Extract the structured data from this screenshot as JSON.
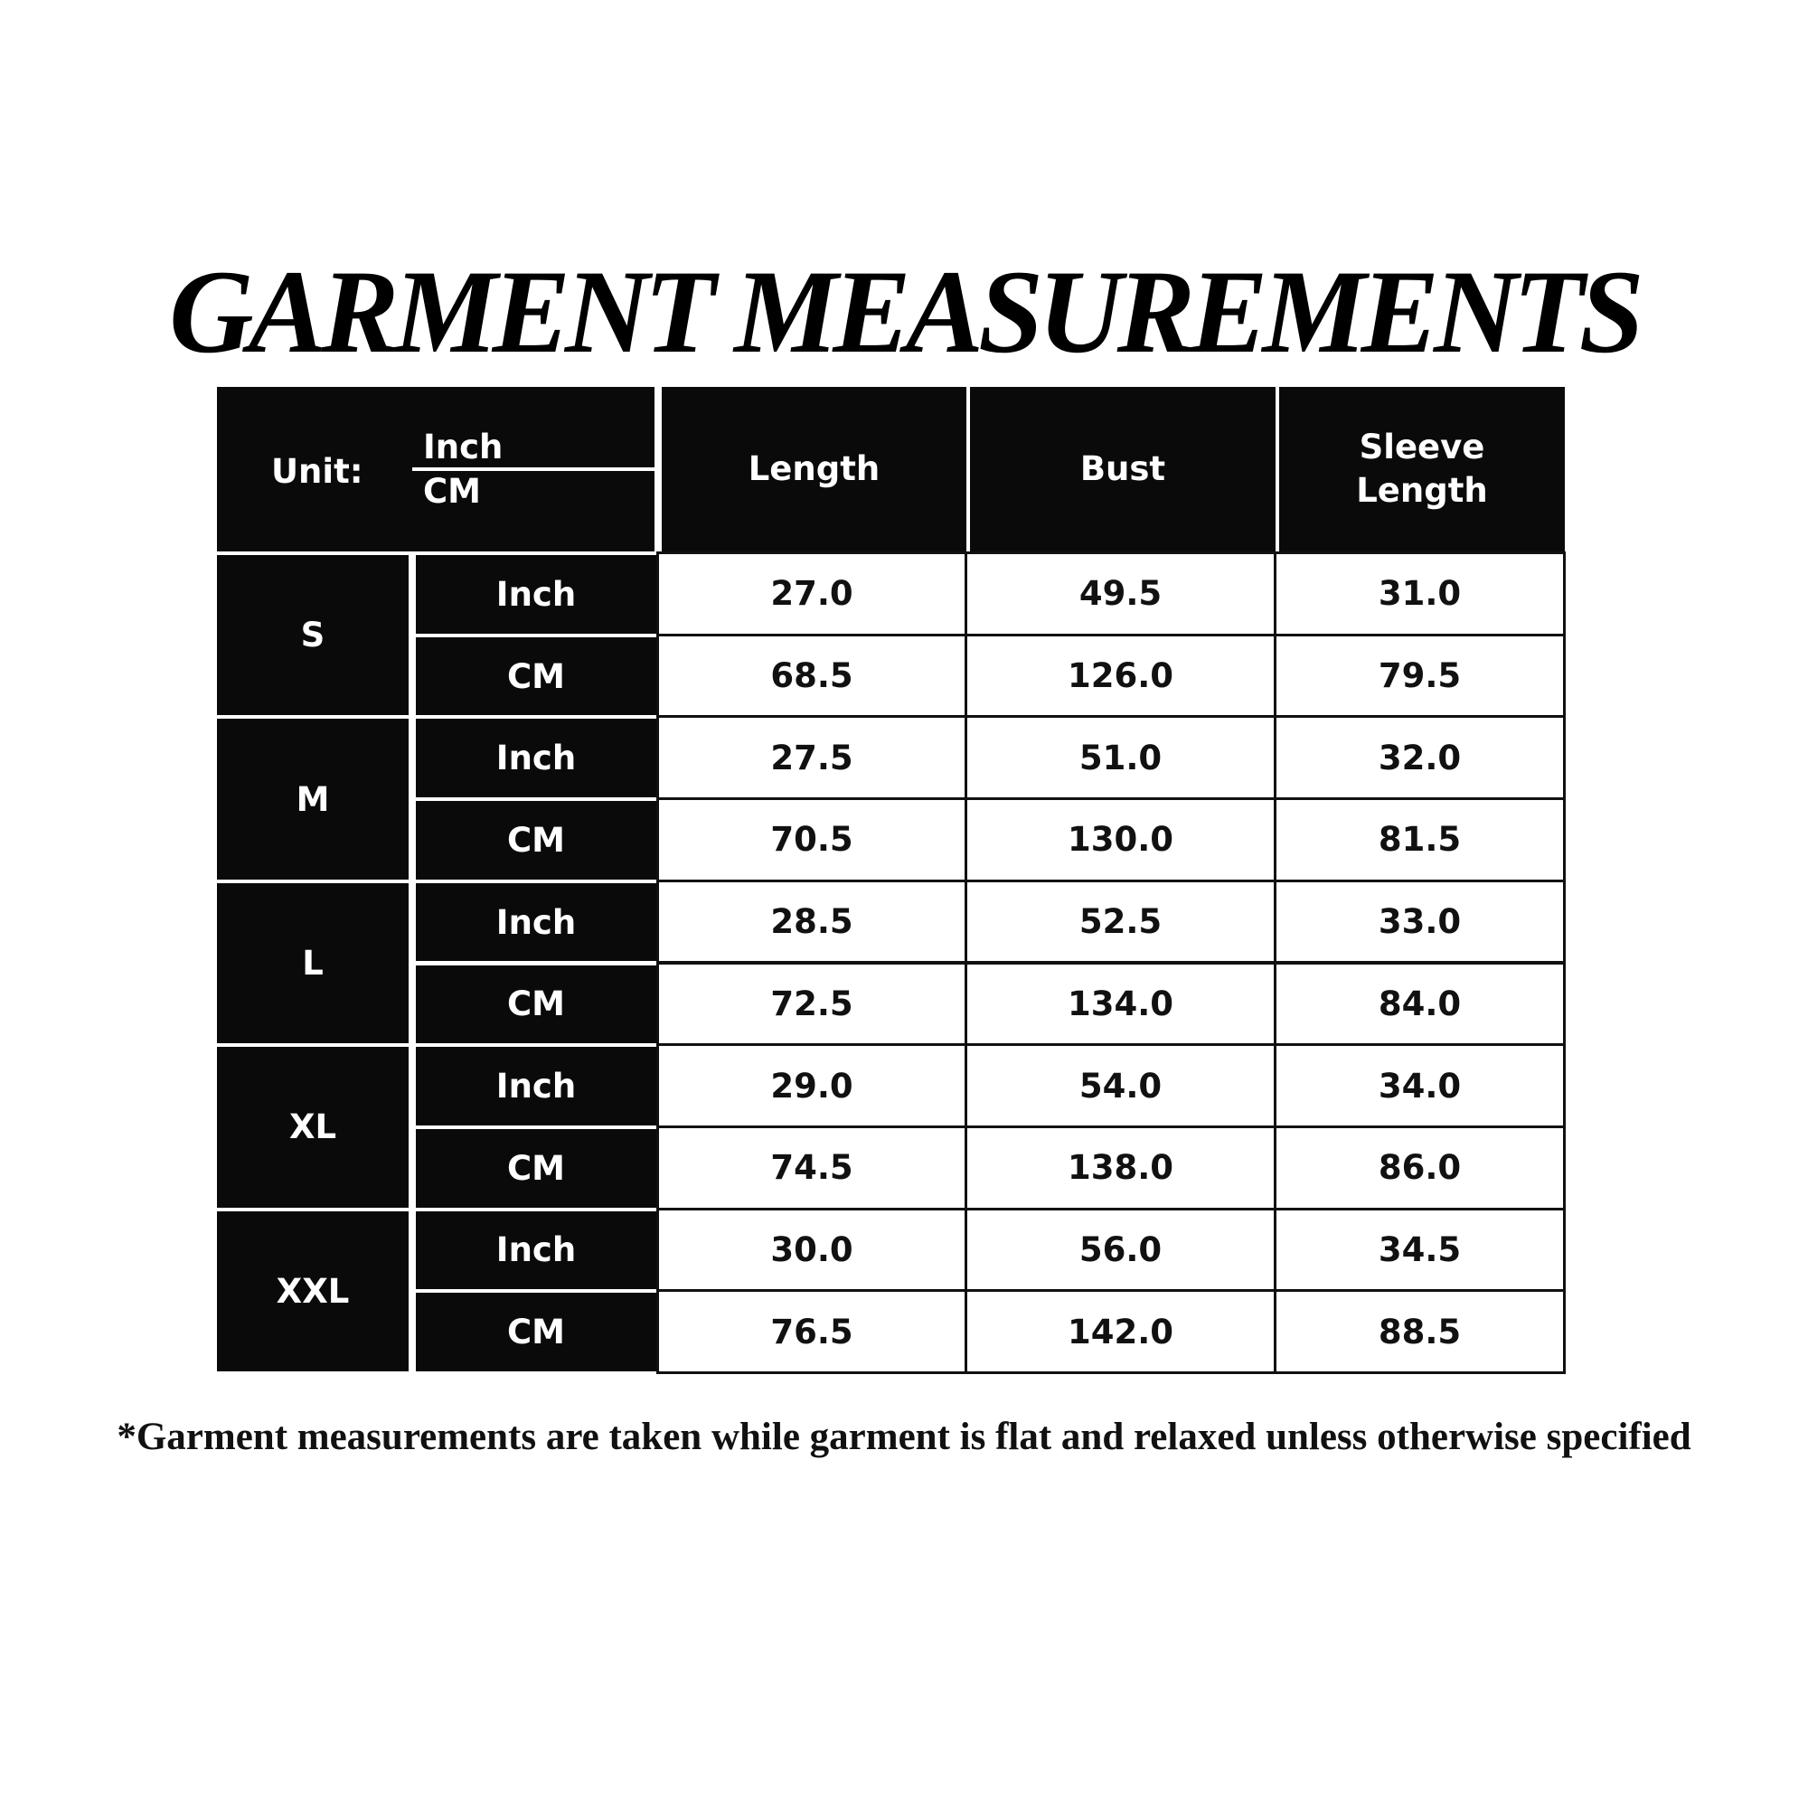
{
  "title": "GARMENT MEASUREMENTS",
  "table": {
    "unit_label": "Unit:",
    "unit_top": "Inch",
    "unit_bottom": "CM",
    "columns": [
      "Length",
      "Bust",
      "Sleeve Length"
    ],
    "sizes": [
      {
        "size": "S",
        "rows": [
          {
            "unit": "Inch",
            "values": [
              "27.0",
              "49.5",
              "31.0"
            ]
          },
          {
            "unit": "CM",
            "values": [
              "68.5",
              "126.0",
              "79.5"
            ]
          }
        ]
      },
      {
        "size": "M",
        "rows": [
          {
            "unit": "Inch",
            "values": [
              "27.5",
              "51.0",
              "32.0"
            ]
          },
          {
            "unit": "CM",
            "values": [
              "70.5",
              "130.0",
              "81.5"
            ]
          }
        ]
      },
      {
        "size": "L",
        "rows": [
          {
            "unit": "Inch",
            "values": [
              "28.5",
              "52.5",
              "33.0"
            ]
          },
          {
            "unit": "CM",
            "values": [
              "72.5",
              "134.0",
              "84.0"
            ]
          }
        ]
      },
      {
        "size": "XL",
        "rows": [
          {
            "unit": "Inch",
            "values": [
              "29.0",
              "54.0",
              "34.0"
            ]
          },
          {
            "unit": "CM",
            "values": [
              "74.5",
              "138.0",
              "86.0"
            ]
          }
        ]
      },
      {
        "size": "XXL",
        "rows": [
          {
            "unit": "Inch",
            "values": [
              "30.0",
              "56.0",
              "34.5"
            ]
          },
          {
            "unit": "CM",
            "values": [
              "76.5",
              "142.0",
              "88.5"
            ]
          }
        ]
      }
    ]
  },
  "footnote": "*Garment measurements are taken while garment is flat and relaxed unless otherwise specified"
}
